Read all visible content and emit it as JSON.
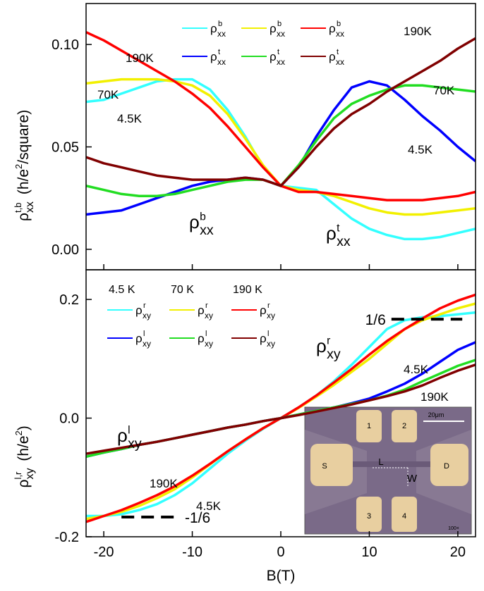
{
  "chart_data": [
    {
      "type": "line",
      "ylabel": {
        "symbol": "ρ",
        "superscript": "t,b",
        "subscript": "xx",
        "unit": " (h/e",
        "unit_superscript": "2",
        "unit_end": "/square)"
      },
      "x": [
        -22,
        -20,
        -18,
        -16,
        -14,
        -12,
        -10,
        -8,
        -6,
        -4,
        -2,
        0,
        2,
        4,
        6,
        8,
        10,
        12,
        14,
        16,
        18,
        20,
        22
      ],
      "xlim": [
        -22,
        22
      ],
      "xticks": [
        -20,
        -10,
        0,
        10,
        20
      ],
      "ylim": [
        -0.01,
        0.12
      ],
      "yticks": [
        {
          "value": 0,
          "label": "0.00"
        },
        0.05,
        {
          "value": 0.1,
          "label": "0.10"
        }
      ],
      "series": [
        {
          "name": "ρ",
          "superscript": "b",
          "subscript": "xx",
          "color": "#33ffff",
          "values": [
            0.072,
            0.073,
            0.076,
            0.079,
            0.082,
            0.083,
            0.083,
            0.078,
            0.068,
            0.055,
            0.04,
            0.031,
            0.03,
            0.029,
            0.022,
            0.015,
            0.01,
            0.007,
            0.005,
            0.005,
            0.006,
            0.008,
            0.01
          ]
        },
        {
          "name": "ρ",
          "superscript": "b",
          "subscript": "xx",
          "color": "#f2f000",
          "values": [
            0.081,
            0.082,
            0.083,
            0.083,
            0.083,
            0.082,
            0.08,
            0.075,
            0.066,
            0.054,
            0.041,
            0.031,
            0.029,
            0.028,
            0.026,
            0.023,
            0.02,
            0.018,
            0.017,
            0.017,
            0.018,
            0.019,
            0.02
          ]
        },
        {
          "name": "ρ",
          "superscript": "b",
          "subscript": "xx",
          "color": "#ff0000",
          "values": [
            0.106,
            0.102,
            0.097,
            0.092,
            0.087,
            0.082,
            0.076,
            0.069,
            0.06,
            0.05,
            0.04,
            0.031,
            0.028,
            0.028,
            0.027,
            0.026,
            0.025,
            0.024,
            0.024,
            0.024,
            0.025,
            0.026,
            0.028
          ]
        },
        {
          "name": "ρ",
          "superscript": "t",
          "subscript": "xx",
          "color": "#0000ff",
          "values": [
            0.017,
            0.018,
            0.019,
            0.022,
            0.025,
            0.028,
            0.031,
            0.033,
            0.034,
            0.035,
            0.034,
            0.031,
            0.04,
            0.055,
            0.068,
            0.079,
            0.082,
            0.08,
            0.073,
            0.065,
            0.058,
            0.05,
            0.043
          ]
        },
        {
          "name": "ρ",
          "superscript": "t",
          "subscript": "xx",
          "color": "#22dd22",
          "values": [
            0.031,
            0.029,
            0.027,
            0.026,
            0.026,
            0.027,
            0.029,
            0.031,
            0.033,
            0.034,
            0.034,
            0.031,
            0.041,
            0.053,
            0.064,
            0.071,
            0.075,
            0.078,
            0.08,
            0.08,
            0.079,
            0.078,
            0.077
          ]
        },
        {
          "name": "ρ",
          "superscript": "t",
          "subscript": "xx",
          "color": "#800000",
          "values": [
            0.045,
            0.042,
            0.04,
            0.038,
            0.036,
            0.035,
            0.034,
            0.034,
            0.034,
            0.035,
            0.034,
            0.031,
            0.04,
            0.05,
            0.059,
            0.066,
            0.071,
            0.077,
            0.082,
            0.087,
            0.092,
            0.098,
            0.103
          ]
        }
      ],
      "annotations": [
        "190K",
        "70K",
        "4.5K",
        "190K",
        "70K",
        "4.5K"
      ],
      "curve_labels": [
        {
          "symbol": "ρ",
          "superscript": "b",
          "subscript": "xx"
        },
        {
          "symbol": "ρ",
          "superscript": "t",
          "subscript": "xx"
        }
      ]
    },
    {
      "type": "line",
      "xlabel": "B(T)",
      "ylabel": {
        "symbol": "ρ",
        "superscript": "l,r",
        "subscript": "xy",
        "unit": " (h/e",
        "unit_superscript": "2",
        "unit_end": ")"
      },
      "x": [
        -22,
        -20,
        -18,
        -16,
        -14,
        -12,
        -10,
        -8,
        -6,
        -4,
        -2,
        0,
        2,
        4,
        6,
        8,
        10,
        12,
        14,
        16,
        18,
        20,
        22
      ],
      "xlim": [
        -22,
        22
      ],
      "xticks": [
        -20,
        -10,
        0,
        10,
        20
      ],
      "ylim": [
        -0.2,
        0.25
      ],
      "yticks": [
        -0.2,
        {
          "value": 0,
          "label": "0.0"
        },
        0.2
      ],
      "legend_headers": [
        "4.5 K",
        "70 K",
        "190 K"
      ],
      "series": [
        {
          "name": "ρ",
          "superscript": "r",
          "subscript": "xy",
          "color": "#33ffff",
          "values": [
            -0.165,
            -0.165,
            -0.162,
            -0.155,
            -0.145,
            -0.13,
            -0.11,
            -0.085,
            -0.06,
            -0.038,
            -0.018,
            0,
            0.018,
            0.038,
            0.062,
            0.09,
            0.12,
            0.15,
            0.165,
            0.17,
            0.172,
            0.175,
            0.178
          ]
        },
        {
          "name": "ρ",
          "superscript": "r",
          "subscript": "xy",
          "color": "#f2f000",
          "values": [
            -0.17,
            -0.165,
            -0.158,
            -0.148,
            -0.135,
            -0.12,
            -0.1,
            -0.078,
            -0.056,
            -0.036,
            -0.017,
            0,
            0.017,
            0.036,
            0.056,
            0.078,
            0.1,
            0.125,
            0.15,
            0.165,
            0.175,
            0.185,
            0.193
          ]
        },
        {
          "name": "ρ",
          "superscript": "r",
          "subscript": "xy",
          "color": "#ff0000",
          "values": [
            -0.175,
            -0.165,
            -0.155,
            -0.143,
            -0.13,
            -0.115,
            -0.097,
            -0.077,
            -0.056,
            -0.036,
            -0.017,
            0,
            0.018,
            0.038,
            0.06,
            0.083,
            0.107,
            0.13,
            0.15,
            0.168,
            0.185,
            0.198,
            0.208
          ]
        },
        {
          "name": "ρ",
          "superscript": "l",
          "subscript": "xy",
          "color": "#0000ff",
          "values": [
            -0.065,
            -0.058,
            -0.052,
            -0.045,
            -0.04,
            -0.034,
            -0.028,
            -0.022,
            -0.016,
            -0.011,
            -0.005,
            0,
            0.006,
            0.012,
            0.018,
            0.025,
            0.033,
            0.045,
            0.058,
            0.075,
            0.095,
            0.115,
            0.128
          ]
        },
        {
          "name": "ρ",
          "superscript": "l",
          "subscript": "xy",
          "color": "#22dd22",
          "values": [
            -0.065,
            -0.058,
            -0.052,
            -0.045,
            -0.04,
            -0.034,
            -0.028,
            -0.022,
            -0.016,
            -0.011,
            -0.005,
            0,
            0.006,
            0.012,
            0.018,
            0.024,
            0.03,
            0.038,
            0.048,
            0.062,
            0.075,
            0.088,
            0.098
          ]
        },
        {
          "name": "ρ",
          "superscript": "l",
          "subscript": "xy",
          "color": "#800000",
          "values": [
            -0.06,
            -0.055,
            -0.05,
            -0.045,
            -0.04,
            -0.034,
            -0.028,
            -0.022,
            -0.016,
            -0.011,
            -0.005,
            0,
            0.005,
            0.011,
            0.017,
            0.023,
            0.03,
            0.037,
            0.045,
            0.055,
            0.068,
            0.08,
            0.09
          ]
        }
      ],
      "reference_lines": [
        {
          "value": 0.1667,
          "label": "1/6",
          "x": [
            12.5,
            20.5
          ]
        },
        {
          "value": -0.1667,
          "label": "-1/6",
          "x": [
            -18,
            -11.8
          ]
        }
      ],
      "annotations": [
        "4.5K",
        "190K",
        "190K",
        "4.5K"
      ],
      "curve_labels": [
        {
          "symbol": "ρ",
          "superscript": "r",
          "subscript": "xy"
        },
        {
          "symbol": "ρ",
          "superscript": "l",
          "subscript": "xy"
        }
      ],
      "inset_labels": [
        "1",
        "2",
        "S",
        "D",
        "3",
        "4",
        "L",
        "W",
        "20μm",
        "100×"
      ]
    }
  ]
}
